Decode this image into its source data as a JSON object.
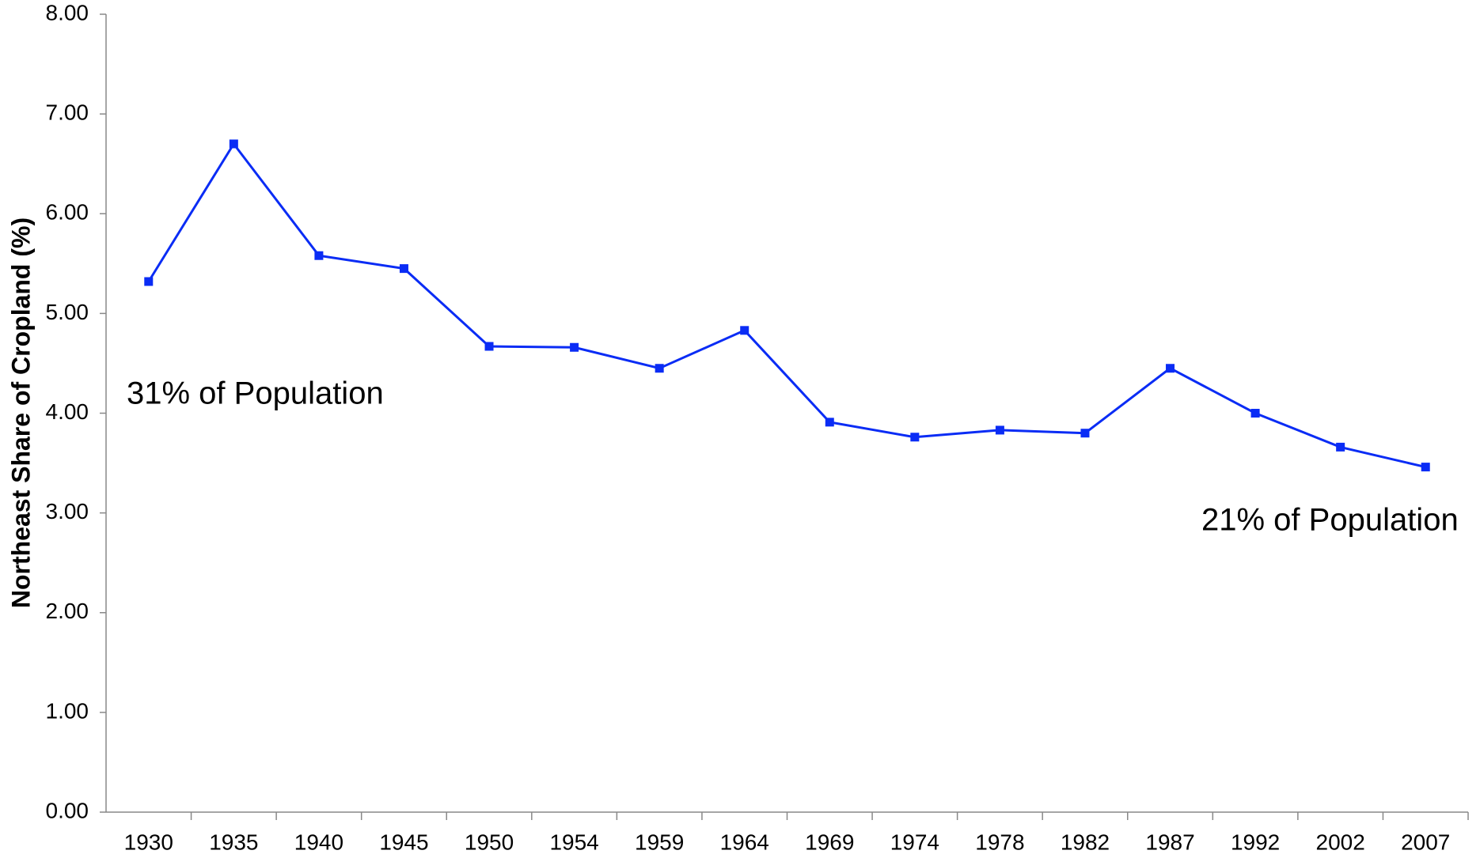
{
  "chart_data": {
    "type": "line",
    "y_label": "Northeast Share of Cropland (%)",
    "annotations": [
      "31% of Population",
      "21% of Population"
    ],
    "categories": [
      "1930",
      "1935",
      "1940",
      "1945",
      "1950",
      "1954",
      "1959",
      "1964",
      "1969",
      "1974",
      "1978",
      "1982",
      "1987",
      "1992",
      "2002",
      "2007"
    ],
    "series": [
      {
        "color": "#0a2cf5",
        "values": [
          5.32,
          6.7,
          5.58,
          5.45,
          4.67,
          4.66,
          4.45,
          4.83,
          3.91,
          3.76,
          3.83,
          3.8,
          4.45,
          4.0,
          3.66,
          3.46
        ]
      }
    ],
    "ylim": [
      0,
      8
    ],
    "yticks": [
      {
        "value": 0,
        "label": "0.00"
      },
      {
        "value": 1,
        "label": "1.00"
      },
      {
        "value": 2,
        "label": "2.00"
      },
      {
        "value": 3,
        "label": "3.00"
      },
      {
        "value": 4,
        "label": "4.00"
      },
      {
        "value": 5,
        "label": "5.00"
      },
      {
        "value": 6,
        "label": "6.00"
      },
      {
        "value": 7,
        "label": "7.00"
      },
      {
        "value": 8,
        "label": "8.00"
      }
    ],
    "grid": false
  }
}
